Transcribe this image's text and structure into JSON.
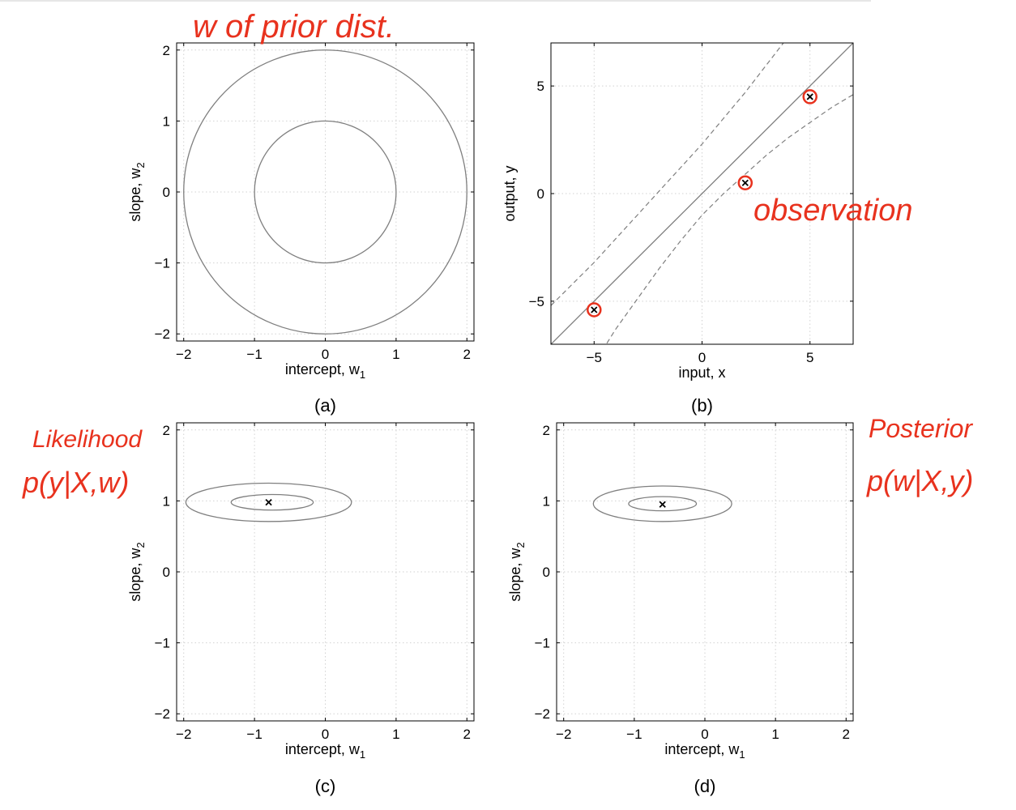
{
  "annotations": {
    "prior": "w of prior dist.",
    "observation": "observation",
    "likelihood_title": "Likelihood",
    "likelihood_formula": "p(y|X,w)",
    "posterior_title": "Posterior",
    "posterior_formula": "p(w|X,y)"
  },
  "colors": {
    "ink": "#e8321e",
    "curve": "#7f7f7f",
    "axis": "#000000",
    "grid": "#d2d2d2"
  },
  "chart_data": [
    {
      "id": "a",
      "type": "contour",
      "caption": "(a)",
      "xlabel": "intercept, w",
      "xlabel_sub": "1",
      "ylabel": "slope, w",
      "ylabel_sub": "2",
      "xlim": [
        -2.1,
        2.1
      ],
      "ylim": [
        -2.1,
        2.1
      ],
      "xticks": [
        -2,
        -1,
        0,
        1,
        2
      ],
      "yticks": [
        -2,
        -1,
        0,
        1,
        2
      ],
      "xticklabels": [
        "−2",
        "−1",
        "0",
        "1",
        "2"
      ],
      "yticklabels": [
        "−2",
        "−1",
        "0",
        "1",
        "2"
      ],
      "grid": true,
      "contours": [
        {
          "cx": 0,
          "cy": 0,
          "rx": 1.0,
          "ry": 1.0
        },
        {
          "cx": 0,
          "cy": 0,
          "rx": 2.0,
          "ry": 2.0
        }
      ]
    },
    {
      "id": "b",
      "type": "line",
      "caption": "(b)",
      "xlabel": "input, x",
      "ylabel": "output, y",
      "xlim": [
        -7,
        7
      ],
      "ylim": [
        -7,
        7
      ],
      "xticks": [
        -5,
        0,
        5
      ],
      "yticks": [
        -5,
        0,
        5
      ],
      "xticklabels": [
        "−5",
        "0",
        "5"
      ],
      "yticklabels": [
        "−5",
        "0",
        "5"
      ],
      "grid": true,
      "mean_line": {
        "intercept": 0.0,
        "slope": 1.0
      },
      "band_lower": [
        [
          -7,
          -11.1
        ],
        [
          -6,
          -9.5
        ],
        [
          -5,
          -7.9
        ],
        [
          -4,
          -6.3
        ],
        [
          -3,
          -4.9
        ],
        [
          -2,
          -3.5
        ],
        [
          -1,
          -2.2
        ],
        [
          0,
          -1.0
        ],
        [
          1,
          0.0
        ],
        [
          2,
          0.9
        ],
        [
          3,
          1.8
        ],
        [
          4,
          2.6
        ],
        [
          5,
          3.3
        ],
        [
          6,
          4.0
        ],
        [
          7,
          4.6
        ]
      ],
      "band_upper": [
        [
          -7,
          -5.2
        ],
        [
          -6,
          -4.2
        ],
        [
          -5,
          -3.2
        ],
        [
          -4,
          -2.1
        ],
        [
          -3,
          -1.0
        ],
        [
          -2,
          0.1
        ],
        [
          -1,
          1.2
        ],
        [
          0,
          2.3
        ],
        [
          1,
          3.5
        ],
        [
          2,
          4.7
        ],
        [
          3,
          6.0
        ],
        [
          4,
          7.3
        ],
        [
          5,
          8.6
        ],
        [
          6,
          9.9
        ],
        [
          7,
          11.2
        ]
      ],
      "points": [
        {
          "x": -5.0,
          "y": -5.4
        },
        {
          "x": 2.0,
          "y": 0.5
        },
        {
          "x": 5.0,
          "y": 4.5
        }
      ]
    },
    {
      "id": "c",
      "type": "contour",
      "caption": "(c)",
      "xlabel": "intercept, w",
      "xlabel_sub": "1",
      "ylabel": "slope, w",
      "ylabel_sub": "2",
      "xlim": [
        -2.1,
        2.1
      ],
      "ylim": [
        -2.1,
        2.1
      ],
      "xticks": [
        -2,
        -1,
        0,
        1,
        2
      ],
      "yticks": [
        -2,
        -1,
        0,
        1,
        2
      ],
      "xticklabels": [
        "−2",
        "−1",
        "0",
        "1",
        "2"
      ],
      "yticklabels": [
        "−2",
        "−1",
        "0",
        "1",
        "2"
      ],
      "grid": true,
      "center": {
        "x": -0.8,
        "y": 0.98
      },
      "contours": [
        {
          "cx": -0.8,
          "cy": 0.98,
          "rx": 1.17,
          "ry": 0.27
        },
        {
          "cx": -0.75,
          "cy": 0.98,
          "rx": 0.58,
          "ry": 0.11
        }
      ]
    },
    {
      "id": "d",
      "type": "contour",
      "caption": "(d)",
      "xlabel": "intercept, w",
      "xlabel_sub": "1",
      "ylabel": "slope, w",
      "ylabel_sub": "2",
      "xlim": [
        -2.1,
        2.1
      ],
      "ylim": [
        -2.1,
        2.1
      ],
      "xticks": [
        -2,
        -1,
        0,
        1,
        2
      ],
      "yticks": [
        -2,
        -1,
        0,
        1,
        2
      ],
      "xticklabels": [
        "−2",
        "−1",
        "0",
        "1",
        "2"
      ],
      "yticklabels": [
        "−2",
        "−1",
        "0",
        "1",
        "2"
      ],
      "grid": true,
      "center": {
        "x": -0.6,
        "y": 0.95
      },
      "contours": [
        {
          "cx": -0.6,
          "cy": 0.96,
          "rx": 0.98,
          "ry": 0.25
        },
        {
          "cx": -0.6,
          "cy": 0.96,
          "rx": 0.48,
          "ry": 0.1
        }
      ]
    }
  ]
}
